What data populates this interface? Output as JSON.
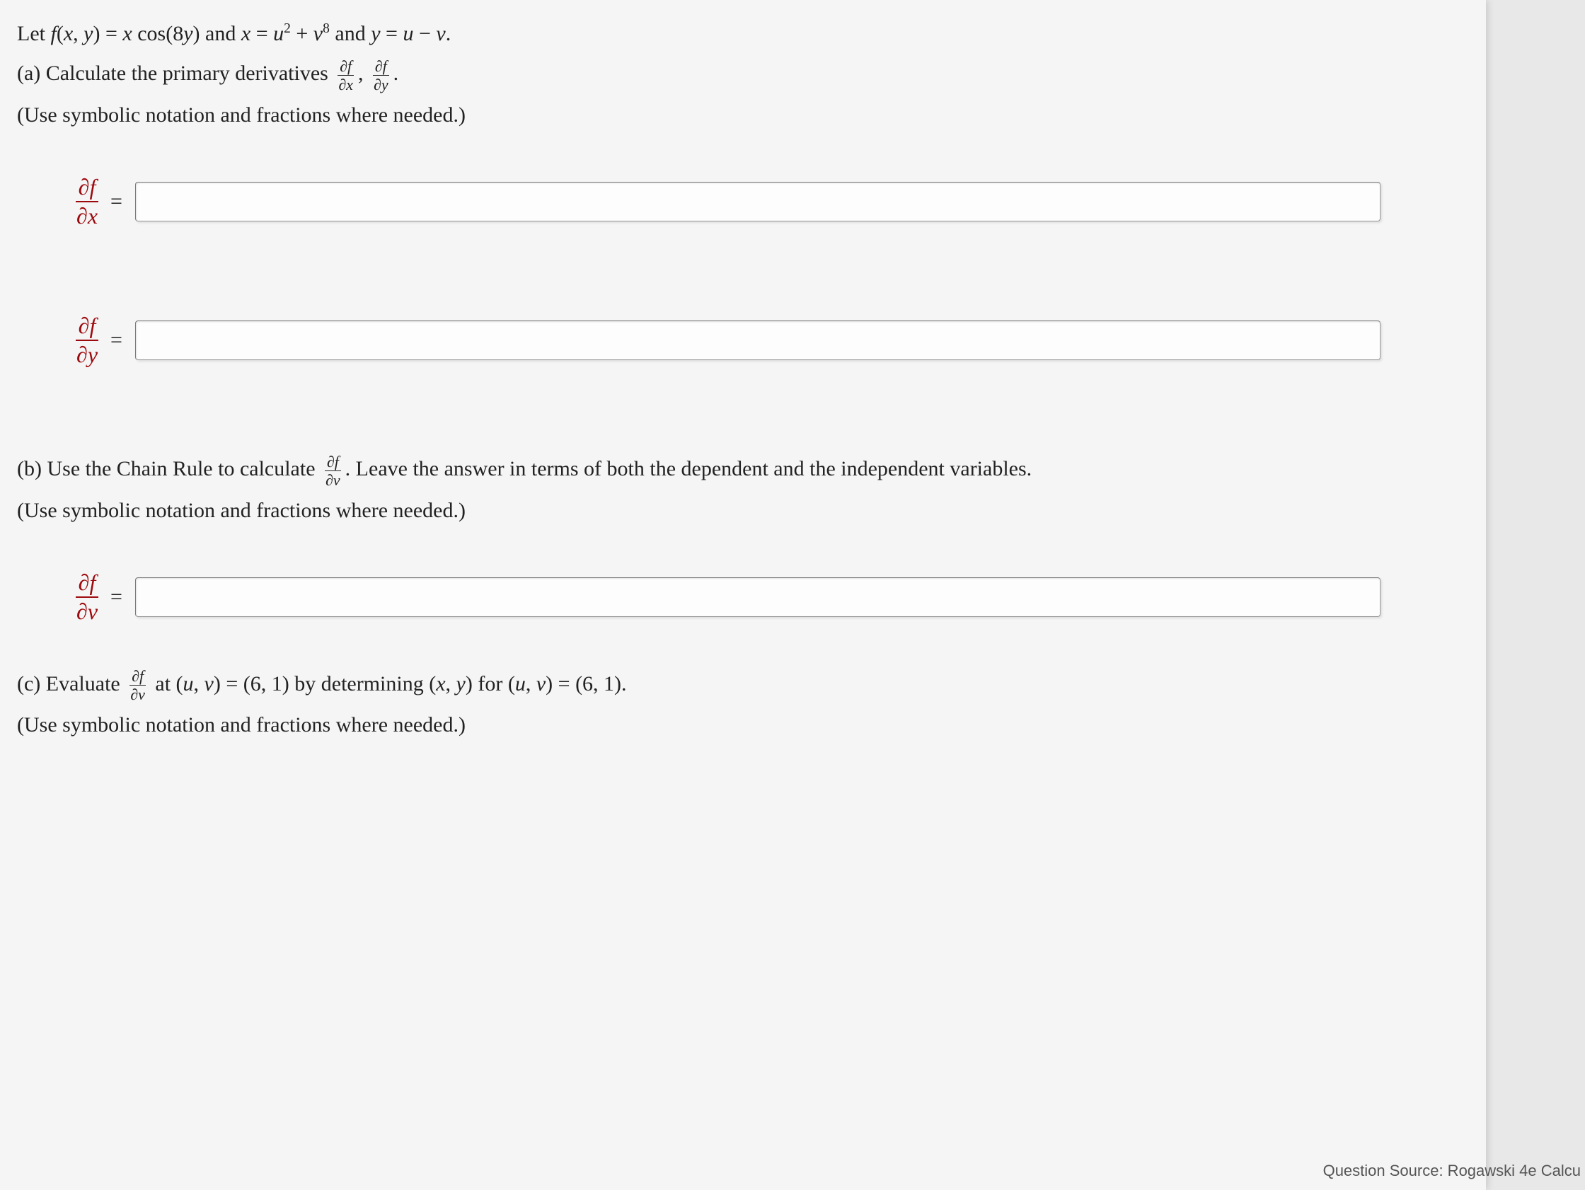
{
  "problem": {
    "intro_prefix": "Let ",
    "fxy": "f(x, y) = x cos(8y)",
    "and1": " and ",
    "xdef": "x = u² + v⁸",
    "and2": " and ",
    "ydef": "y = u − v",
    "period": "."
  },
  "part_a": {
    "label": "(a) Calculate the primary derivatives ",
    "frac1_num": "∂f",
    "frac1_den": "∂x",
    "comma": ", ",
    "frac2_num": "∂f",
    "frac2_den": "∂y",
    "end": "."
  },
  "hint": "(Use symbolic notation and fractions where needed.)",
  "answer1": {
    "num": "∂f",
    "den": "∂x",
    "value": ""
  },
  "answer2": {
    "num": "∂f",
    "den": "∂y",
    "value": ""
  },
  "part_b": {
    "label_pre": "(b) Use the Chain Rule to calculate ",
    "frac_num": "∂f",
    "frac_den": "∂v",
    "label_post": ". Leave the answer in terms of both the dependent and the independent variables."
  },
  "answer3": {
    "num": "∂f",
    "den": "∂v",
    "value": ""
  },
  "part_c": {
    "label_pre": "(c) Evaluate ",
    "frac_num": "∂f",
    "frac_den": "∂v",
    "label_mid": " at (u, v) = (6, 1) by determining (x, y) for (u, v) = (6, 1)."
  },
  "source": "Question Source: Rogawski 4e Calcu"
}
